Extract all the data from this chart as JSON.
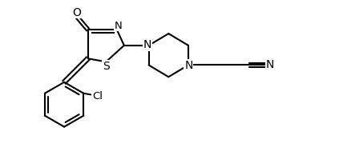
{
  "background_color": "#ffffff",
  "line_color": "#000000",
  "bond_width": 1.5,
  "font_size": 10,
  "fig_width": 4.23,
  "fig_height": 2.04,
  "dpi": 100,
  "xlim": [
    0.0,
    9.5
  ],
  "ylim": [
    0.3,
    5.2
  ]
}
